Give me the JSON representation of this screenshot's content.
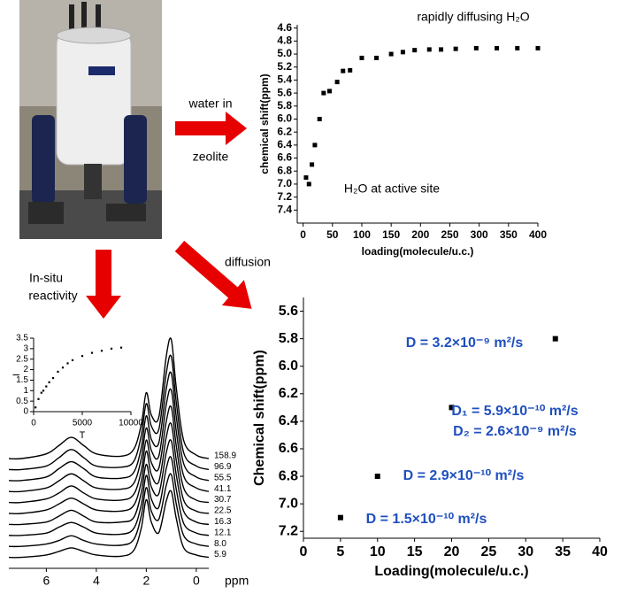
{
  "labels": [
    "water in",
    "zeolite",
    "In-situ",
    "reactivity",
    "diffusion"
  ],
  "chart_data": [
    {
      "type": "scatter",
      "xlabel": "loading(molecule/u.c.)",
      "ylabel": "chemical shift(ppm)",
      "annotations": [
        "rapidly diffusing H₂O",
        "H₂O at active site"
      ],
      "x": [
        5,
        10,
        15,
        20,
        28,
        35,
        45,
        58,
        68,
        80,
        100,
        125,
        150,
        170,
        190,
        215,
        235,
        260,
        295,
        330,
        365,
        400
      ],
      "values": [
        6.9,
        7.0,
        6.7,
        6.4,
        6.0,
        5.6,
        5.57,
        5.43,
        5.26,
        5.25,
        5.06,
        5.06,
        5.0,
        4.97,
        4.94,
        4.93,
        4.93,
        4.92,
        4.91,
        4.91,
        4.91,
        4.91
      ],
      "color": "#000000",
      "xlim": [
        -10,
        400
      ],
      "ylim": [
        4.55,
        7.6
      ],
      "y_inverted": true,
      "xticks": [
        0,
        50,
        100,
        150,
        200,
        250,
        300,
        350,
        400
      ],
      "yticks": [
        4.6,
        4.8,
        {
          "value": 5,
          "label": "5.0"
        },
        5.2,
        5.4,
        5.6,
        5.8,
        {
          "value": 6,
          "label": "6.0"
        },
        6.2,
        6.4,
        6.6,
        6.8,
        {
          "value": 7,
          "label": "7.0"
        },
        7.2,
        7.4
      ]
    },
    {
      "type": "scatter",
      "xlabel": "Loading(molecule/u.c.)",
      "ylabel": "Chemical shift(ppm)",
      "annotations": [
        "D = 3.2×10⁻⁹ m²/s",
        "D₁ = 5.9×10⁻¹⁰ m²/s",
        "D₂ = 2.6×10⁻⁹ m²/s",
        "D = 2.9×10⁻¹⁰ m²/s",
        "D = 1.5×10⁻¹⁰ m²/s"
      ],
      "annotation_color": "#1f4fbf",
      "x": [
        5,
        10,
        20,
        34
      ],
      "values": [
        7.1,
        6.8,
        6.3,
        5.8
      ],
      "color": "#000000",
      "xlim": [
        0,
        40
      ],
      "ylim": [
        5.5,
        7.25
      ],
      "y_inverted": true,
      "xticks": [
        0,
        5,
        10,
        15,
        20,
        25,
        30,
        35,
        40
      ],
      "yticks": [
        5.6,
        5.8,
        {
          "value": 6,
          "label": "6.0"
        },
        6.2,
        6.4,
        6.6,
        6.8,
        {
          "value": 7,
          "label": "7.0"
        },
        7.2
      ]
    },
    {
      "type": "scatter",
      "xlabel": "T",
      "ylabel": "I",
      "x": [
        200,
        500,
        800,
        1000,
        1300,
        1600,
        2000,
        2500,
        3000,
        3500,
        4000,
        5000,
        6000,
        7000,
        8000,
        9000
      ],
      "values": [
        0.2,
        0.6,
        0.9,
        1.0,
        1.2,
        1.4,
        1.6,
        1.9,
        2.1,
        2.3,
        2.45,
        2.65,
        2.8,
        2.9,
        3.0,
        3.05
      ],
      "color": "#000000",
      "xlim": [
        0,
        10000
      ],
      "ylim": [
        0,
        3.5
      ],
      "xticks": [
        0,
        5000,
        10000
      ],
      "yticks": [
        0,
        0.5,
        1,
        1.5,
        2,
        2.5,
        3,
        3.5
      ]
    },
    {
      "type": "line",
      "xlabel": "ppm",
      "color": "#000000",
      "x": [
        7.5,
        7,
        6,
        5.5,
        5,
        4.5,
        4,
        3,
        2.5,
        2.2,
        2,
        1.8,
        1.5,
        1.2,
        1,
        0.8,
        0.5,
        0,
        -0.5
      ],
      "xlim": [
        7.5,
        -0.5
      ],
      "xticks": [
        6,
        4,
        2,
        0
      ],
      "series": [
        {
          "name": "158.9",
          "values": [
            0,
            0,
            4,
            11,
            18,
            11,
            4,
            2,
            8,
            29,
            56,
            37,
            35,
            87,
            101,
            60,
            15,
            3,
            0
          ]
        },
        {
          "name": "96.9",
          "values": [
            0,
            0,
            3,
            10,
            17,
            10,
            3,
            2,
            7,
            29,
            56,
            37,
            34,
            82,
            96,
            57,
            14,
            3,
            0
          ]
        },
        {
          "name": "55.5",
          "values": [
            0,
            0,
            3,
            10,
            16,
            10,
            3,
            2,
            7,
            28,
            55,
            35,
            32,
            78,
            91,
            54,
            14,
            3,
            0
          ]
        },
        {
          "name": "41.1",
          "values": [
            0,
            0,
            3,
            9,
            15,
            9,
            3,
            2,
            7,
            28,
            54,
            35,
            30,
            74,
            86,
            51,
            13,
            3,
            0
          ]
        },
        {
          "name": "30.7",
          "values": [
            0,
            0,
            3,
            8,
            14,
            8,
            3,
            2,
            7,
            27,
            53,
            34,
            29,
            69,
            81,
            48,
            12,
            2,
            0
          ]
        },
        {
          "name": "22.5",
          "values": [
            0,
            0,
            3,
            8,
            13,
            8,
            3,
            2,
            7,
            27,
            53,
            33,
            27,
            65,
            76,
            45,
            11,
            2,
            0
          ]
        },
        {
          "name": "16.3",
          "values": [
            0,
            0,
            2,
            7,
            12,
            7,
            2,
            2,
            6,
            27,
            51,
            32,
            26,
            61,
            71,
            42,
            11,
            2,
            0
          ]
        },
        {
          "name": "12.1",
          "values": [
            0,
            0,
            2,
            7,
            11,
            7,
            2,
            1,
            6,
            26,
            51,
            31,
            24,
            57,
            66,
            39,
            10,
            2,
            0
          ]
        },
        {
          "name": "8.0",
          "values": [
            0,
            0,
            2,
            5,
            9,
            5,
            2,
            1,
            6,
            26,
            50,
            30,
            23,
            52,
            61,
            36,
            9,
            2,
            0
          ]
        },
        {
          "name": "5.9",
          "values": [
            0,
            0,
            2,
            5,
            8,
            5,
            2,
            1,
            6,
            25,
            49,
            30,
            21,
            48,
            56,
            33,
            8,
            2,
            0
          ]
        }
      ]
    }
  ]
}
